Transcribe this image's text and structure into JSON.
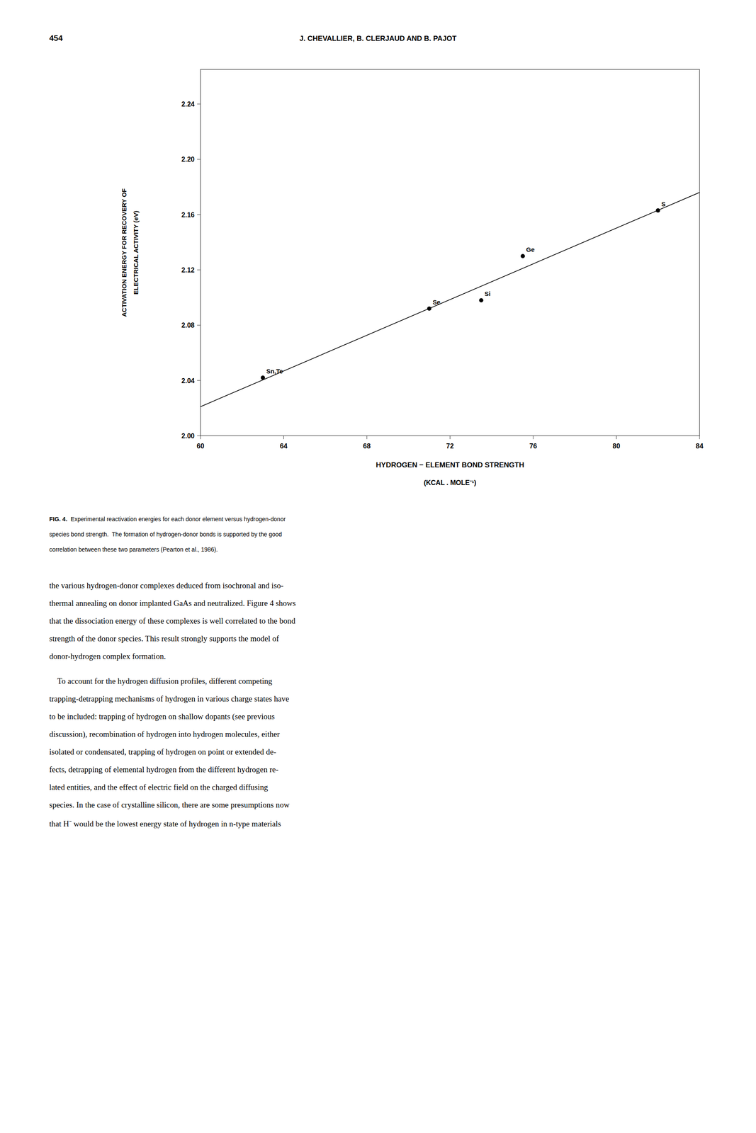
{
  "chart_data": {
    "type": "scatter",
    "xlabel": [
      "HYDROGEN − ELEMENT BOND STRENGTH",
      "(KCAL . MOLE⁻¹)"
    ],
    "ylabel": [
      "ACTIVATION ENERGY FOR RECOVERY OF",
      "ELECTRICAL ACTIVITY (eV)"
    ],
    "series": [
      {
        "type": "scatter",
        "marker": "circle",
        "color": "#000000",
        "x": [
          63.0,
          71.0,
          73.5,
          75.5,
          82.0
        ],
        "values": [
          2.042,
          2.092,
          2.098,
          2.13,
          2.163
        ],
        "labels": [
          "Sn,Te",
          "Se",
          "Si",
          "Ge",
          "S"
        ]
      },
      {
        "type": "line",
        "line_style": "solid",
        "color": "#000000",
        "x": [
          60.0,
          84.0
        ],
        "values": [
          2.0210261,
          2.1760548
        ]
      }
    ],
    "xlim": [
      60,
      84
    ],
    "ylim": [
      2.0,
      2.265
    ],
    "xticks": [
      60,
      64,
      68,
      72,
      76,
      80,
      84
    ],
    "yticks": [
      {
        "value": 2.0,
        "label": "2.00"
      },
      2.04,
      2.08,
      2.12,
      2.16,
      {
        "value": 2.2,
        "label": "2.20"
      },
      2.24
    ],
    "grid": false
  },
  "page": {
    "header_num": "454",
    "header_title": "J. CHEVALLIER, B. CLERJAUD AND B. PAJOT",
    "caption_bold": "FIG. 4.",
    "caption_rest": [
      "  Experimental reactivation energies for each donor element versus hydrogen-donor",
      "species bond strength.  The formation of hydrogen-donor bonds is supported by the good",
      "correlation between these two parameters (Pearton et al., 1986)."
    ],
    "body_para1": [
      "the various hydrogen-donor complexes deduced from isochronal and iso-",
      "thermal annealing on donor implanted GaAs and neutralized. Figure 4 shows",
      "that the dissociation energy of these complexes is well correlated to the bond",
      "strength of the donor species. This result strongly supports the model of",
      "donor-hydrogen complex formation."
    ],
    "body_para2": [
      " To account for the hydrogen diffusion profiles, different competing",
      "trapping-detrapping mechanisms of hydrogen in various charge states have",
      "to be included: trapping of hydrogen on shallow dopants (see previous",
      "discussion), recombination of hydrogen into hydrogen molecules, either",
      "isolated or condensated, trapping of hydrogen on point or extended de-",
      "fects, detrapping of elemental hydrogen from the different hydrogen re-",
      "lated entities, and the effect of electric field on the charged diffusing",
      "species. In the case of crystalline silicon, there are some presumptions now",
      "that H⁻ would be the lowest energy state of hydrogen in n-type materials"
    ]
  }
}
